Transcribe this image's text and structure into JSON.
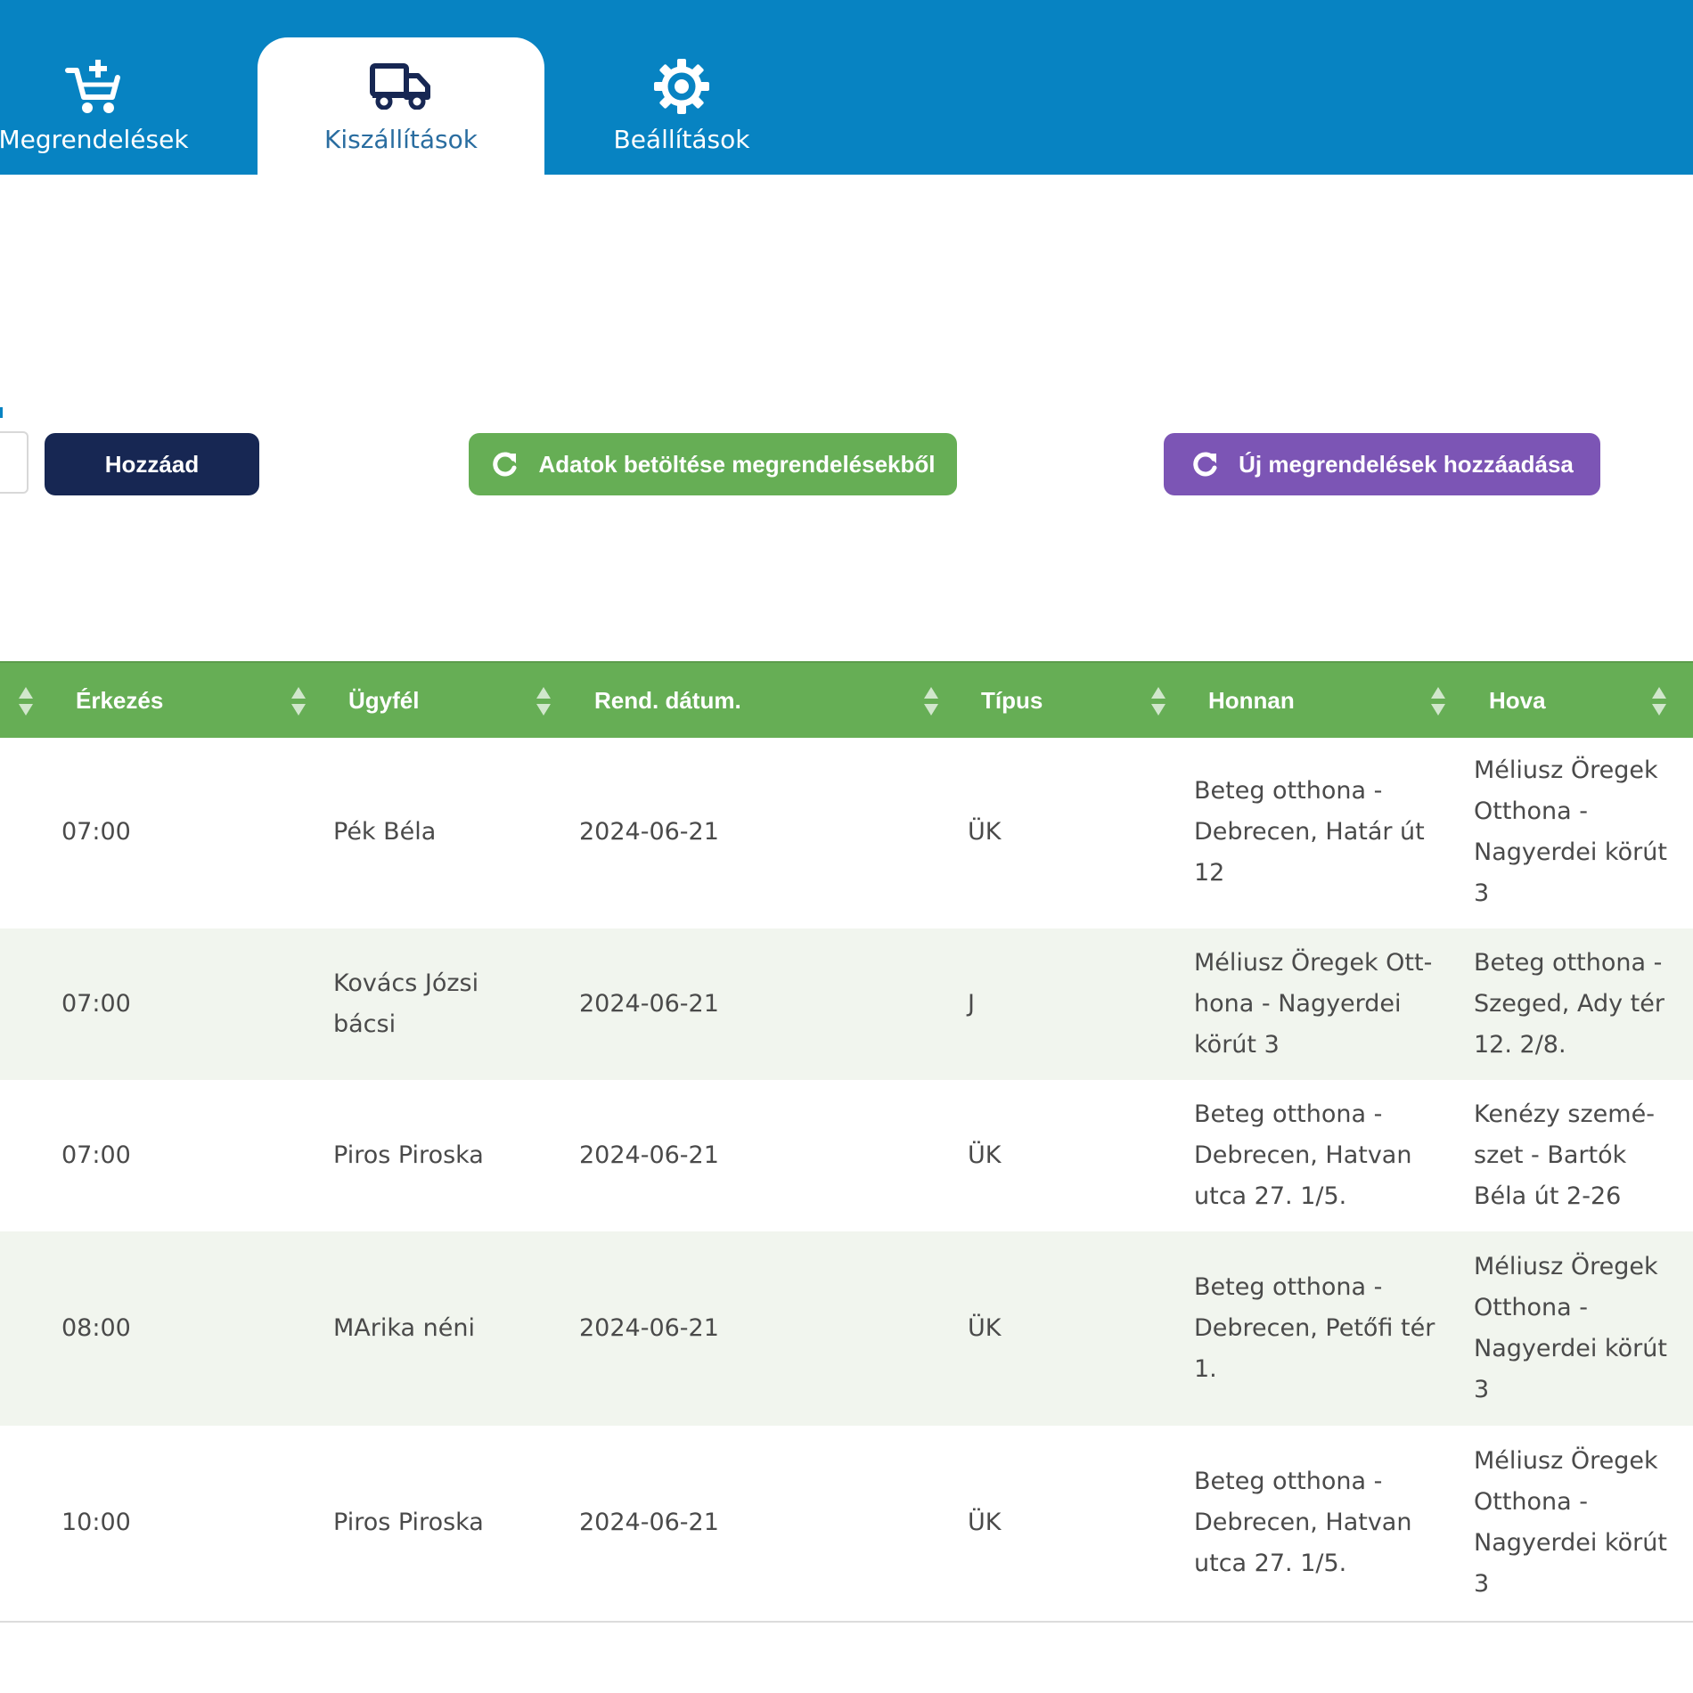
{
  "nav": {
    "tabs": [
      {
        "label": "Megrendelések",
        "icon": "cart-plus-icon",
        "active": false
      },
      {
        "label": "Kiszállítások",
        "icon": "truck-icon",
        "active": true
      },
      {
        "label": "Beállítások",
        "icon": "gear-icon",
        "active": false
      }
    ]
  },
  "actions": {
    "add_label": "Hozzáad",
    "load_label": "Adatok betöltése megrendelésekből",
    "load_icon": "refresh-icon",
    "new_label": "Új megrendelések hozzáadása",
    "new_icon": "refresh-icon"
  },
  "table": {
    "headers": [
      "Érkezés",
      "Ügyfél",
      "Rend. dátum.",
      "Típus",
      "Honnan",
      "Hova"
    ],
    "rows": [
      {
        "time": "07:00",
        "client": "Pék Béla",
        "date": "2024-06-21",
        "type": "ÜK",
        "from": "Beteg otthona - Debrecen, Határ út 12",
        "to": "Méliusz Öregek Otthona - Nagyerdei körút 3"
      },
      {
        "time": "07:00",
        "client": "Kovács Józsi bácsi",
        "date": "2024-06-21",
        "type": "J",
        "from": "Méliusz Öregek Ott­hona - Nagyerdei körút 3",
        "to": "Beteg otthona - Szeged, Ady tér 12. 2/8."
      },
      {
        "time": "07:00",
        "client": "Piros Piroska",
        "date": "2024-06-21",
        "type": "ÜK",
        "from": "Beteg otthona - Debrecen, Hatvan utca 27. 1/5.",
        "to": "Kenézy szemé­szet - Bartók Béla út 2-26"
      },
      {
        "time": "08:00",
        "client": "MArika néni",
        "date": "2024-06-21",
        "type": "ÜK",
        "from": "Beteg otthona - Debrecen, Petőfi tér 1.",
        "to": "Méliusz Öregek Otthona - Nagyerdei körút 3"
      },
      {
        "time": "10:00",
        "client": "Piros Piroska",
        "date": "2024-06-21",
        "type": "ÜK",
        "from": "Beteg otthona - Debrecen, Hatvan utca 27. 1/5.",
        "to": "Méliusz Öregek Otthona - Nagyerdei körút 3"
      }
    ]
  },
  "colors": {
    "nav_bg": "#0783c2",
    "add_btn": "#172753",
    "load_btn": "#66ae55",
    "new_btn": "#7c55b5",
    "header_bg": "#66ae55",
    "alt_row": "#f1f5ee"
  }
}
